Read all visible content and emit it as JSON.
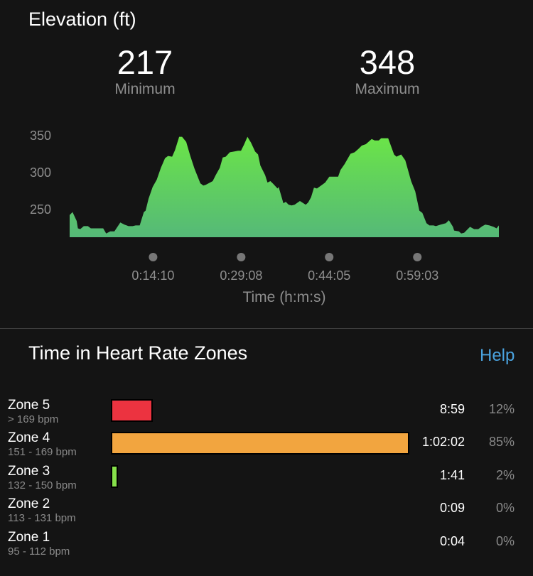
{
  "elevation": {
    "title": "Elevation (ft)",
    "minimum": {
      "value": "217",
      "label": "Minimum"
    },
    "maximum": {
      "value": "348",
      "label": "Maximum"
    }
  },
  "chart_data": [
    {
      "type": "area",
      "xlabel": "Time (h:m:s)",
      "ylabel": "",
      "x_unit": "minutes",
      "xlim": [
        0,
        72.9
      ],
      "ylim": [
        212,
        355
      ],
      "y_ticks": [
        "350",
        "300",
        "250"
      ],
      "y_tick_values": [
        350,
        300,
        250
      ],
      "x_ticks": [
        "0:14:10",
        "0:29:08",
        "0:44:05",
        "0:59:03"
      ],
      "x_tick_values": [
        14.17,
        29.13,
        44.08,
        59.05
      ],
      "grid": false,
      "fill_gradient": [
        "#6be448",
        "#55b978"
      ],
      "points": [
        [
          0,
          242
        ],
        [
          0.5,
          246
        ],
        [
          1.2,
          234
        ],
        [
          1.4,
          224
        ],
        [
          1.8,
          223
        ],
        [
          2.4,
          227
        ],
        [
          3.1,
          227
        ],
        [
          3.6,
          224
        ],
        [
          5.2,
          224
        ],
        [
          5.7,
          224
        ],
        [
          6.2,
          217
        ],
        [
          6.9,
          220
        ],
        [
          7.6,
          220
        ],
        [
          8.6,
          232
        ],
        [
          9.3,
          229
        ],
        [
          10.0,
          227
        ],
        [
          10.7,
          227
        ],
        [
          11.2,
          228
        ],
        [
          11.9,
          228
        ],
        [
          12.6,
          246
        ],
        [
          12.9,
          248
        ],
        [
          13.4,
          264
        ],
        [
          14.1,
          280
        ],
        [
          14.8,
          290
        ],
        [
          15.5,
          306
        ],
        [
          16.2,
          319
        ],
        [
          16.7,
          322
        ],
        [
          17.4,
          321
        ],
        [
          17.9,
          330
        ],
        [
          18.6,
          348
        ],
        [
          19.1,
          348
        ],
        [
          19.8,
          341
        ],
        [
          20.5,
          322
        ],
        [
          21.2,
          305
        ],
        [
          22.2,
          285
        ],
        [
          22.7,
          282
        ],
        [
          23.1,
          283
        ],
        [
          23.6,
          285
        ],
        [
          24.3,
          288
        ],
        [
          24.8,
          296
        ],
        [
          25.5,
          306
        ],
        [
          26.0,
          320
        ],
        [
          26.5,
          321
        ],
        [
          27.2,
          327
        ],
        [
          27.9,
          328
        ],
        [
          28.6,
          329
        ],
        [
          29.1,
          329
        ],
        [
          29.6,
          337
        ],
        [
          30.2,
          348
        ],
        [
          30.8,
          340
        ],
        [
          31.5,
          328
        ],
        [
          32.0,
          324
        ],
        [
          32.4,
          309
        ],
        [
          33.2,
          296
        ],
        [
          33.6,
          286
        ],
        [
          34.1,
          288
        ],
        [
          34.6,
          284
        ],
        [
          35.3,
          278
        ],
        [
          35.5,
          280
        ],
        [
          36.3,
          258
        ],
        [
          36.7,
          260
        ],
        [
          37.2,
          256
        ],
        [
          37.7,
          255
        ],
        [
          38.2,
          256
        ],
        [
          39.1,
          261
        ],
        [
          40.1,
          256
        ],
        [
          40.5,
          259
        ],
        [
          41.0,
          266
        ],
        [
          41.5,
          279
        ],
        [
          42.0,
          278
        ],
        [
          42.7,
          282
        ],
        [
          43.4,
          286
        ],
        [
          44.1,
          294
        ],
        [
          45.6,
          294
        ],
        [
          46.0,
          303
        ],
        [
          46.7,
          311
        ],
        [
          47.7,
          325
        ],
        [
          48.4,
          327
        ],
        [
          49.1,
          332
        ],
        [
          49.6,
          336
        ],
        [
          50.3,
          338
        ],
        [
          51.3,
          345
        ],
        [
          51.8,
          343
        ],
        [
          52.5,
          343
        ],
        [
          52.9,
          346
        ],
        [
          54.1,
          346
        ],
        [
          55.1,
          324
        ],
        [
          55.5,
          321
        ],
        [
          56.3,
          324
        ],
        [
          57.0,
          316
        ],
        [
          58.0,
          288
        ],
        [
          58.7,
          274
        ],
        [
          59.4,
          248
        ],
        [
          59.9,
          245
        ],
        [
          60.6,
          231
        ],
        [
          61.1,
          228
        ],
        [
          61.8,
          228
        ],
        [
          62.2,
          227
        ],
        [
          63.0,
          229
        ],
        [
          63.9,
          231
        ],
        [
          64.4,
          235
        ],
        [
          65.1,
          226
        ],
        [
          65.3,
          221
        ],
        [
          66.1,
          220
        ],
        [
          66.5,
          217
        ],
        [
          67.0,
          218
        ],
        [
          68.0,
          226
        ],
        [
          68.7,
          223
        ],
        [
          69.4,
          223
        ],
        [
          70.1,
          227
        ],
        [
          70.6,
          229
        ],
        [
          71.3,
          228
        ],
        [
          72.0,
          226
        ],
        [
          72.5,
          224
        ],
        [
          72.9,
          228
        ]
      ]
    },
    {
      "type": "bar",
      "title": "Time in Heart Rate Zones",
      "categories": [
        "Zone 5",
        "Zone 4",
        "Zone 3",
        "Zone 2",
        "Zone 1"
      ],
      "values": [
        12,
        85,
        2,
        0,
        0
      ],
      "value_unit": "%",
      "colors": [
        "#ec3340",
        "#f2a53f",
        "#86e04a",
        "#4a90d9",
        "#999999"
      ]
    }
  ],
  "hr_zones": {
    "title": "Time in Heart Rate Zones",
    "help_label": "Help",
    "zones": [
      {
        "name": "Zone 5",
        "range": "> 169 bpm",
        "time": "8:59",
        "percent": "12%",
        "pct": 12,
        "color": "#ec3340"
      },
      {
        "name": "Zone 4",
        "range": "151 - 169 bpm",
        "time": "1:02:02",
        "percent": "85%",
        "pct": 85,
        "color": "#f2a53f"
      },
      {
        "name": "Zone 3",
        "range": "132 - 150 bpm",
        "time": "1:41",
        "percent": "2%",
        "pct": 2,
        "color": "#86e04a"
      },
      {
        "name": "Zone 2",
        "range": "113 - 131 bpm",
        "time": "0:09",
        "percent": "0%",
        "pct": 0,
        "color": "#4a90d9"
      },
      {
        "name": "Zone 1",
        "range": "95 - 112 bpm",
        "time": "0:04",
        "percent": "0%",
        "pct": 0,
        "color": "#999999"
      }
    ]
  }
}
